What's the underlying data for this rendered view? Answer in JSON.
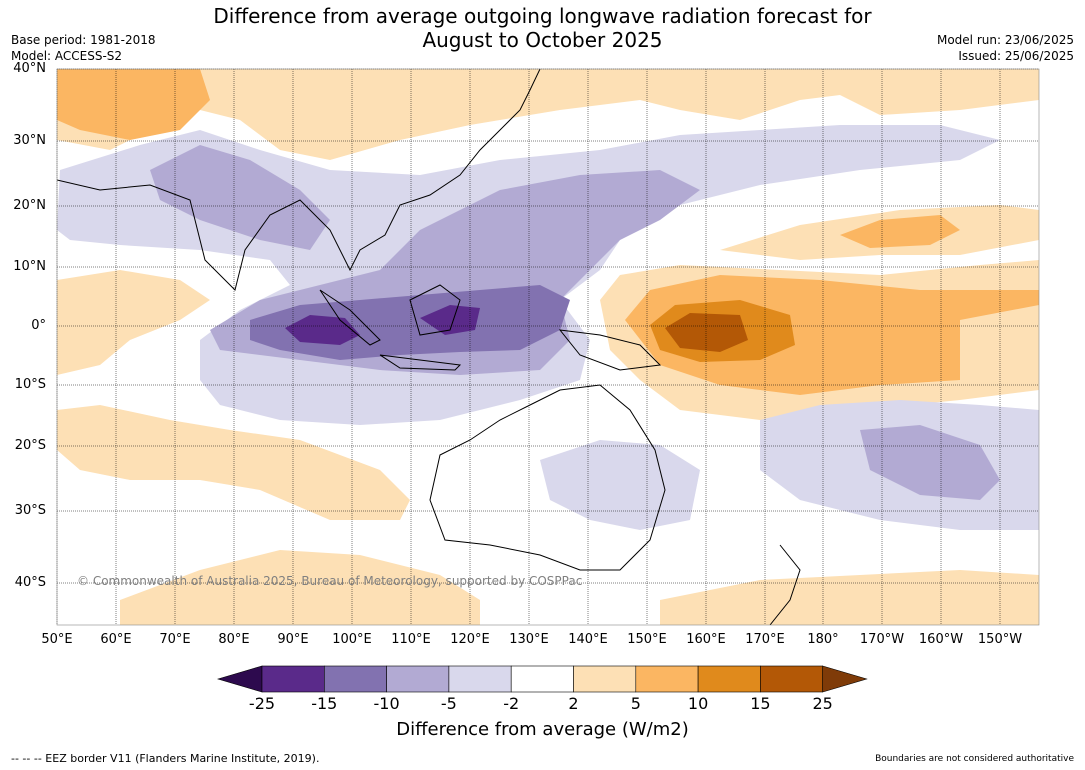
{
  "header": {
    "title_line1": "Difference from average outgoing longwave radiation forecast for",
    "title_line2": "August to October 2025",
    "base_period": "Base period: 1981-2018",
    "model": "Model: ACCESS-S2",
    "model_run": "Model run: 23/06/2025",
    "issued": "Issued: 25/06/2025"
  },
  "map": {
    "lat_labels": [
      "40°N",
      "30°N",
      "20°N",
      "10°N",
      "0°",
      "10°S",
      "20°S",
      "30°S",
      "40°S"
    ],
    "lon_labels": [
      "50°E",
      "60°E",
      "70°E",
      "80°E",
      "90°E",
      "100°E",
      "110°E",
      "120°E",
      "130°E",
      "140°E",
      "150°E",
      "160°E",
      "170°E",
      "180°",
      "170°W",
      "160°W",
      "150°W"
    ],
    "copyright": "© Commonwealth of Australia 2025, Bureau of Meteorology, supported by COSPPac"
  },
  "colorbar": {
    "title": "Difference from average (W/m2)",
    "ticks": [
      "-25",
      "-15",
      "-10",
      "-5",
      "-2",
      "2",
      "5",
      "10",
      "15",
      "25"
    ],
    "colors": [
      "#2d0a4e",
      "#5a2a8a",
      "#8272b0",
      "#b2aad3",
      "#d9d8ec",
      "#ffffff",
      "#fde0b5",
      "#fbb662",
      "#e08a1c",
      "#b35806",
      "#7f3b08"
    ]
  },
  "footer": {
    "eez_note": "--  --  -- EEZ border V11 (Flanders Marine Institute, 2019).",
    "boundary_note": "Boundaries are not considered authoritative"
  }
}
